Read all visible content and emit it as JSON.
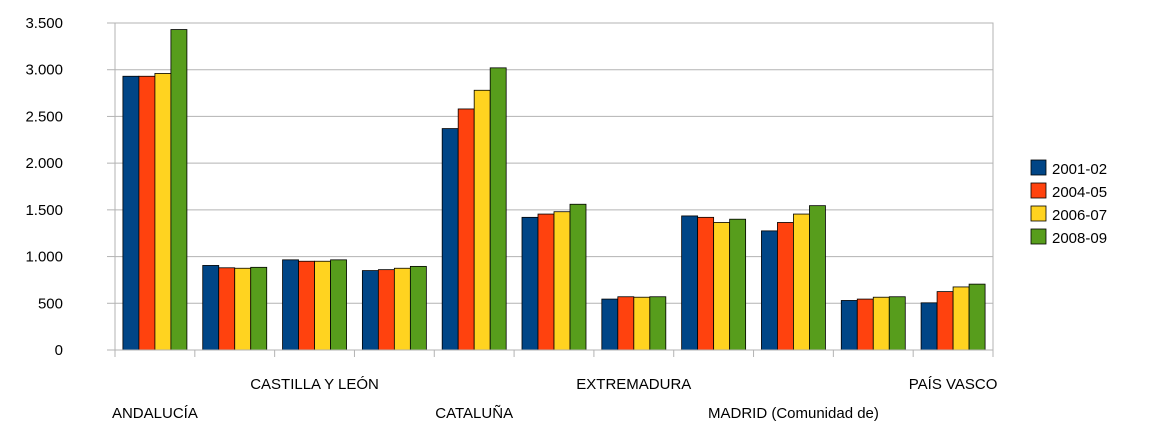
{
  "chart_data": {
    "type": "bar",
    "title": "",
    "xlabel": "",
    "ylabel": "",
    "ylim": [
      0,
      3500
    ],
    "y_ticks": [
      0,
      500,
      1000,
      1500,
      2000,
      2500,
      3000,
      3500
    ],
    "y_tick_labels": [
      "0",
      "500",
      "1.000",
      "1.500",
      "2.000",
      "2.500",
      "3.000",
      "3.500"
    ],
    "grid": true,
    "legend_position": "right",
    "categories": [
      "ANDALUCÍA",
      "",
      "CASTILLA Y LEÓN",
      "",
      "CATALUÑA",
      "",
      "EXTREMADURA",
      "",
      "MADRID (Comunidad de)",
      "",
      "PAÍS VASCO"
    ],
    "category_label_rows": [
      2,
      1,
      1,
      1,
      2,
      1,
      1,
      1,
      2,
      1,
      1
    ],
    "series": [
      {
        "name": "2001-02",
        "color": "#004586",
        "values": [
          2930,
          905,
          965,
          850,
          2370,
          1420,
          545,
          1435,
          1275,
          530,
          505
        ]
      },
      {
        "name": "2004-05",
        "color": "#ff420e",
        "values": [
          2930,
          880,
          950,
          860,
          2580,
          1455,
          570,
          1420,
          1365,
          545,
          625
        ]
      },
      {
        "name": "2006-07",
        "color": "#ffd320",
        "values": [
          2960,
          875,
          950,
          875,
          2780,
          1480,
          565,
          1365,
          1455,
          565,
          675
        ]
      },
      {
        "name": "2008-09",
        "color": "#579d1c",
        "values": [
          3430,
          885,
          965,
          895,
          3020,
          1560,
          570,
          1400,
          1545,
          570,
          705
        ]
      }
    ]
  }
}
